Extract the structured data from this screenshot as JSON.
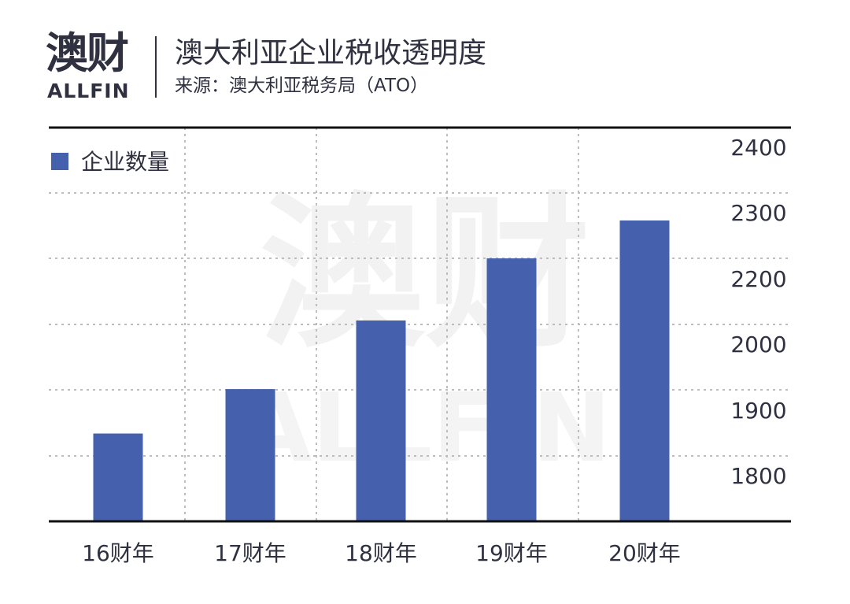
{
  "header": {
    "logo_cn": "澳财",
    "logo_en": "ALLFIN",
    "title": "澳大利亚企业税收透明度",
    "subtitle": "来源：澳大利亚税务局（ATO）"
  },
  "watermark": {
    "cn": "澳财",
    "en": "ALLFIN"
  },
  "colors": {
    "bar": "#4560ad",
    "text": "#2f3140",
    "grid": "#bdbdbd",
    "axis": "#111111",
    "logo_accent": "#c0304a"
  },
  "chart_data": {
    "type": "bar",
    "categories": [
      "16财年",
      "17财年",
      "18财年",
      "19财年",
      "20财年"
    ],
    "series": [
      {
        "name": "企业数量",
        "values": [
          1962,
          2030,
          2135,
          2230,
          2288
        ]
      }
    ],
    "y_tick_labels": [
      "2400",
      "2300",
      "2200",
      "2000",
      "1900",
      "1800"
    ],
    "legend_position": "top-left",
    "y_axis_side": "right",
    "grid": true
  }
}
